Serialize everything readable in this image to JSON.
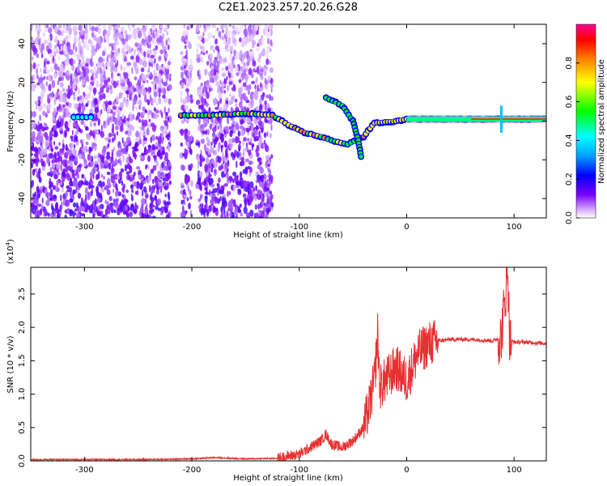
{
  "page": {
    "title": "C2E1.2023.257.20.26.G28"
  },
  "chart_data": [
    {
      "type": "heatmap",
      "title": "C2E1.2023.257.20.26.G28",
      "xlabel": "Height of straight line (km)",
      "ylabel": "Frequency (Hz)",
      "xlim": [
        -350,
        130
      ],
      "ylim": [
        -50,
        50
      ],
      "x_ticks": [
        -300,
        -200,
        -100,
        0,
        100
      ],
      "x_tick_labels": [
        "-300",
        "-200",
        "-100",
        "0",
        "100"
      ],
      "y_ticks": [
        -40,
        -20,
        0,
        20,
        40
      ],
      "y_tick_labels": [
        "-40",
        "-20",
        "0",
        "20",
        "40"
      ],
      "colorbar": {
        "label": "Normalized spectral amplitude",
        "range": [
          0,
          1
        ],
        "ticks": [
          0.0,
          0.2,
          0.4,
          0.6,
          0.8
        ],
        "tick_labels": [
          "0.0",
          "0.2",
          "0.4",
          "0.6",
          "0.8"
        ],
        "colormap": [
          "#ffffff",
          "#e8c8ff",
          "#7a00ff",
          "#0000ff",
          "#00ffff",
          "#00ff00",
          "#ffff00",
          "#ff8000",
          "#ff0000",
          "#ff0090"
        ]
      },
      "noise_columns_x": [
        [
          -350,
          -220
        ],
        [
          -210,
          -200
        ],
        [
          -195,
          -125
        ]
      ],
      "main_trace": [
        {
          "x": -310,
          "y": 2
        },
        {
          "x": -290,
          "y": 2
        },
        {
          "x": -210,
          "y": 3
        },
        {
          "x": -180,
          "y": 3
        },
        {
          "x": -150,
          "y": 4
        },
        {
          "x": -125,
          "y": 3
        },
        {
          "x": -110,
          "y": -2
        },
        {
          "x": -95,
          "y": -6
        },
        {
          "x": -80,
          "y": -8
        },
        {
          "x": -70,
          "y": -10
        },
        {
          "x": -55,
          "y": -12
        },
        {
          "x": -40,
          "y": -8
        },
        {
          "x": -30,
          "y": -1
        },
        {
          "x": -10,
          "y": 0
        },
        {
          "x": 0,
          "y": 1
        },
        {
          "x": 20,
          "y": 1
        },
        {
          "x": 50,
          "y": 1
        },
        {
          "x": 80,
          "y": 1
        },
        {
          "x": 90,
          "y": 1
        },
        {
          "x": 100,
          "y": 1
        },
        {
          "x": 130,
          "y": 1
        }
      ],
      "branch_trace": [
        {
          "x": -75,
          "y": 12
        },
        {
          "x": -60,
          "y": 8
        },
        {
          "x": -50,
          "y": 0
        },
        {
          "x": -45,
          "y": -10
        },
        {
          "x": -42,
          "y": -20
        }
      ]
    },
    {
      "type": "line",
      "xlabel": "Height of straight line (km)",
      "ylabel": "SNR (10 * v/v)",
      "y_multiplier": "(x10",
      "y_multiplier_exp": "4",
      "y_multiplier_close": ")",
      "xlim": [
        -350,
        130
      ],
      "ylim": [
        0,
        2.9
      ],
      "x_ticks": [
        -300,
        -200,
        -100,
        0,
        100
      ],
      "x_tick_labels": [
        "-300",
        "-200",
        "-100",
        "0",
        "100"
      ],
      "y_ticks": [
        0.0,
        0.5,
        1.0,
        1.5,
        2.0,
        2.5
      ],
      "y_tick_labels": [
        "0.0",
        "0.5",
        "1.0",
        "1.5",
        "2.0",
        "2.5"
      ],
      "line_color": "#e83030",
      "series": [
        {
          "x": [
            -350,
            -300,
            -250,
            -200,
            -180,
            -150,
            -120,
            -100,
            -90,
            -80,
            -75,
            -70,
            -60,
            -50,
            -40,
            -35,
            -30,
            -27,
            -25,
            -20,
            -15,
            -10,
            -5,
            0,
            10,
            20,
            30,
            40,
            60,
            80,
            88,
            92,
            94,
            96,
            100,
            110,
            120,
            130
          ],
          "y": [
            0.02,
            0.02,
            0.02,
            0.03,
            0.05,
            0.03,
            0.04,
            0.1,
            0.2,
            0.3,
            0.4,
            0.25,
            0.2,
            0.3,
            0.5,
            0.8,
            1.2,
            1.9,
            1.1,
            1.2,
            1.3,
            1.4,
            1.3,
            1.2,
            1.6,
            1.75,
            1.8,
            1.82,
            1.82,
            1.8,
            1.85,
            2.5,
            2.9,
            1.8,
            1.78,
            1.78,
            1.77,
            1.76
          ]
        }
      ]
    }
  ]
}
